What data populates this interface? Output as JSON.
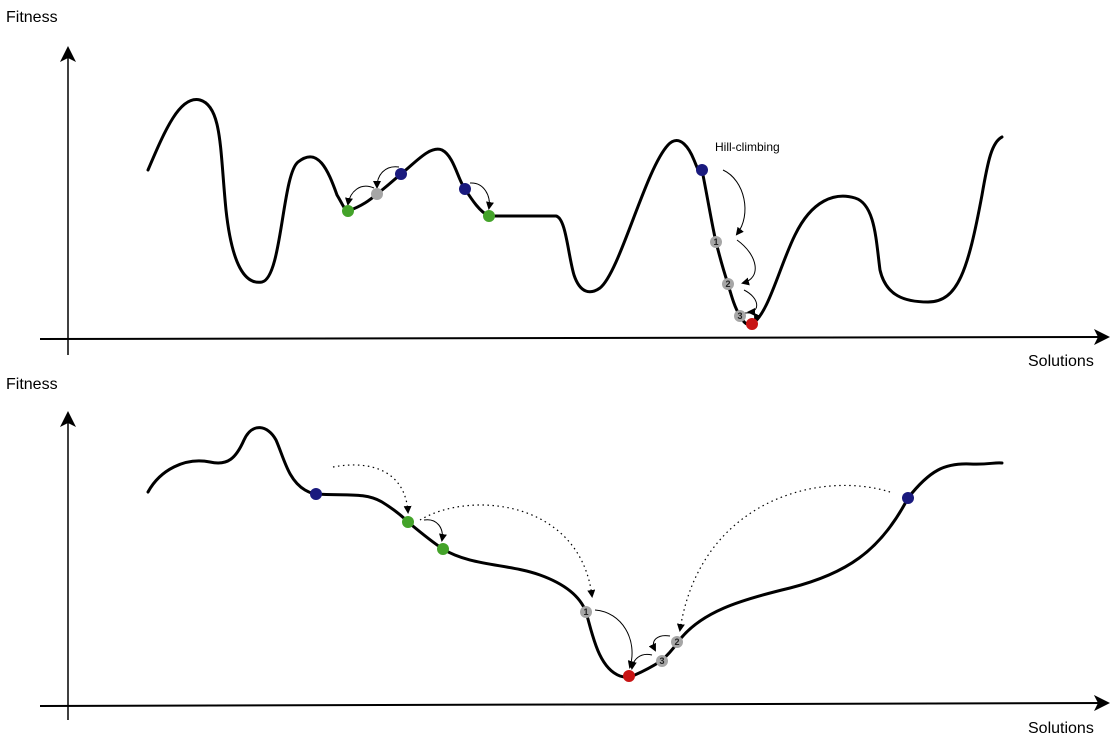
{
  "panels": [
    {
      "y_axis_label": "Fitness",
      "x_axis_label": "Solutions",
      "annotation": "Hill-climbing",
      "step_labels": [
        "1",
        "2",
        "3"
      ]
    },
    {
      "y_axis_label": "Fitness",
      "x_axis_label": "Solutions",
      "step_labels": [
        "1",
        "2",
        "3"
      ]
    }
  ],
  "colors": {
    "curve": "#000000",
    "start_point": "#1a1a7e",
    "neighbor_point": "#44a32a",
    "intermediate_point": "#a6a6a6",
    "optimum_point": "#c81414"
  }
}
